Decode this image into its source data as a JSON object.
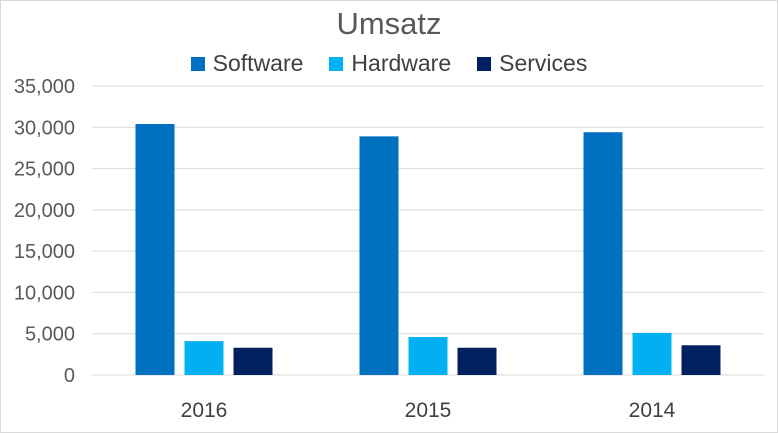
{
  "chart_data": {
    "type": "bar",
    "title": "Umsatz",
    "categories": [
      "2016",
      "2015",
      "2014"
    ],
    "series": [
      {
        "name": "Software",
        "color": "#0070C0",
        "values": [
          30400,
          28900,
          29400
        ]
      },
      {
        "name": "Hardware",
        "color": "#00B0F0",
        "values": [
          4100,
          4600,
          5100
        ]
      },
      {
        "name": "Services",
        "color": "#002060",
        "values": [
          3300,
          3300,
          3600
        ]
      }
    ],
    "ylim": [
      0,
      35000
    ],
    "yticks": [
      "0",
      "5,000",
      "10,000",
      "15,000",
      "20,000",
      "25,000",
      "30,000",
      "35,000"
    ],
    "grid": true,
    "legend": "top"
  }
}
